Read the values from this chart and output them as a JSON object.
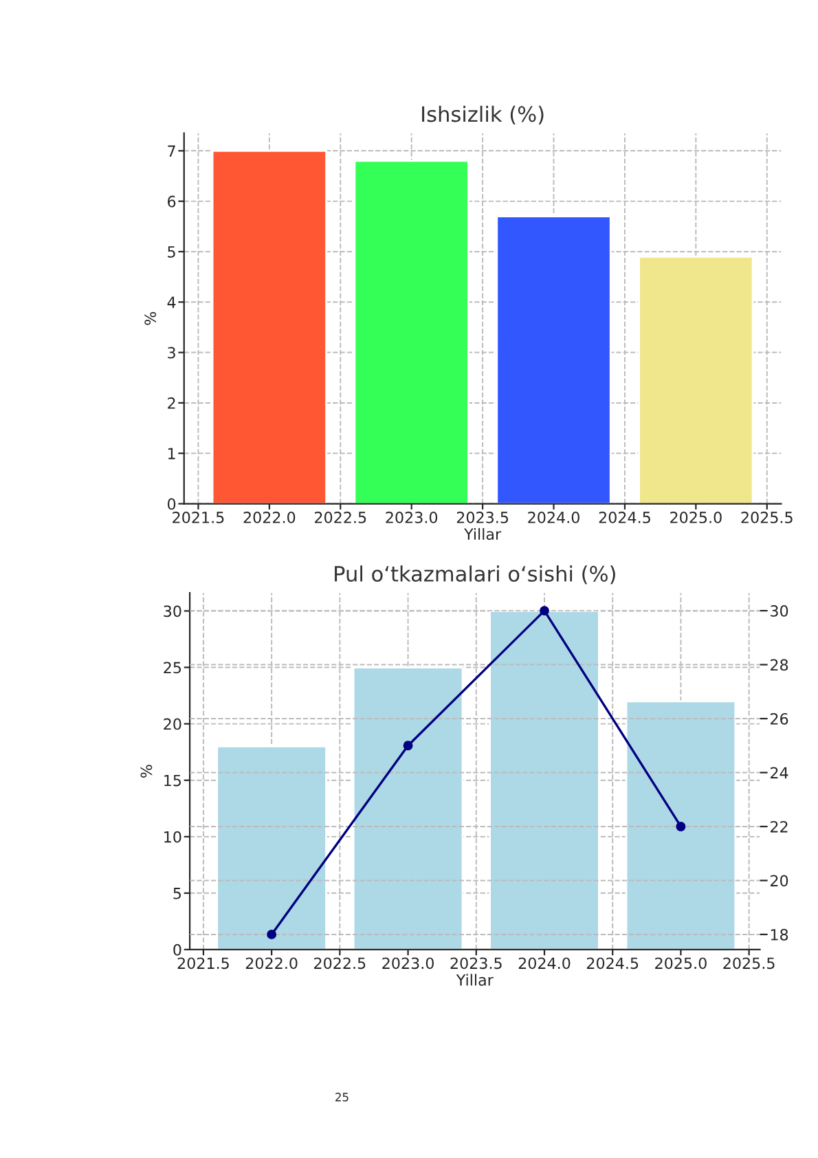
{
  "chart_data": [
    {
      "type": "bar",
      "title": "Ishsizlik (%)",
      "xlabel": "Yillar",
      "ylabel": "%",
      "x": [
        2022,
        2023,
        2024,
        2025
      ],
      "series": [
        {
          "values": [
            7.0,
            6.8,
            5.7,
            4.9
          ],
          "colors": [
            "#ff5733",
            "#33ff57",
            "#3357ff",
            "#f0e68c"
          ]
        }
      ],
      "xlim": [
        2021.4,
        2025.6
      ],
      "xticks": [
        {
          "value": 2021.5,
          "label": "2021.5"
        },
        {
          "value": 2022,
          "label": "2022.0"
        },
        {
          "value": 2022.5,
          "label": "2022.5"
        },
        {
          "value": 2023,
          "label": "2023.0"
        },
        {
          "value": 2023.5,
          "label": "2023.5"
        },
        {
          "value": 2024,
          "label": "2024.0"
        },
        {
          "value": 2024.5,
          "label": "2024.5"
        },
        {
          "value": 2025,
          "label": "2025.0"
        },
        {
          "value": 2025.5,
          "label": "2025.5"
        }
      ],
      "ylim": [
        0,
        7.35
      ],
      "yticks": [
        0,
        1,
        2,
        3,
        4,
        5,
        6,
        7
      ],
      "grid": true,
      "legend": false
    },
    {
      "type": "bar",
      "title": "Pul o‘tkazmalari o‘sishi (%)",
      "xlabel": "Yillar",
      "ylabel": "%",
      "x": [
        2022,
        2023,
        2024,
        2025
      ],
      "series": [
        {
          "type": "bar",
          "color": "#add8e6",
          "values": [
            18,
            25,
            30,
            22
          ]
        },
        {
          "type": "line",
          "axis": "y2",
          "color": "#000080",
          "marker": "circle",
          "line_style": "solid",
          "values": [
            18,
            25,
            30,
            22
          ]
        }
      ],
      "xlim": [
        2021.4,
        2025.58
      ],
      "xticks": [
        {
          "value": 2021.5,
          "label": "2021.5"
        },
        {
          "value": 2022,
          "label": "2022.0"
        },
        {
          "value": 2022.5,
          "label": "2022.5"
        },
        {
          "value": 2023,
          "label": "2023.0"
        },
        {
          "value": 2023.5,
          "label": "2023.5"
        },
        {
          "value": 2024,
          "label": "2024.0"
        },
        {
          "value": 2024.5,
          "label": "2024.5"
        },
        {
          "value": 2025,
          "label": "2025.0"
        },
        {
          "value": 2025.5,
          "label": "2025.5"
        }
      ],
      "ylim": [
        0,
        31.6
      ],
      "yticks": [
        0,
        5,
        10,
        15,
        20,
        25,
        30
      ],
      "y2lim": [
        17.44,
        30.66
      ],
      "y2ticks": [
        18,
        20,
        22,
        24,
        26,
        28,
        30
      ],
      "grid": true,
      "legend": false,
      "annotations": [
        "25"
      ]
    }
  ]
}
